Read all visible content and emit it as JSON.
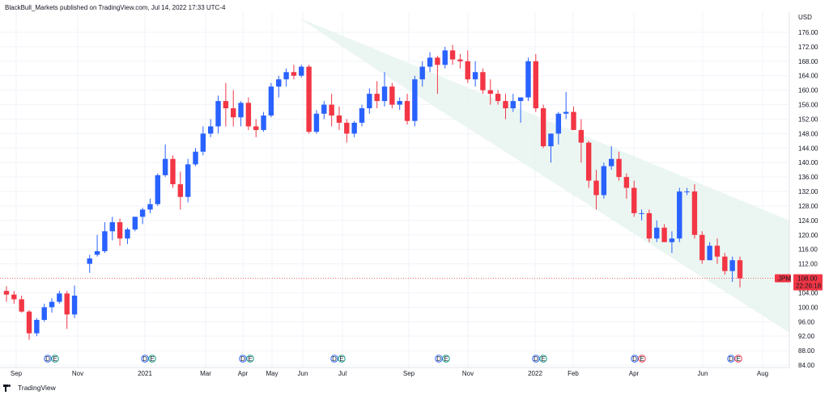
{
  "header": {
    "text": "BlackBull_Markets published on TradingView.com, Jul 14, 2022 17:33 UTC-4"
  },
  "footer": {
    "brand": "TradingView",
    "logo_icon": "tradingview-logo-icon"
  },
  "price_axis": {
    "currency": "USD",
    "ticks": [
      "176.00",
      "172.00",
      "168.00",
      "164.00",
      "160.00",
      "156.00",
      "152.00",
      "148.00",
      "144.00",
      "140.00",
      "136.00",
      "132.00",
      "128.00",
      "124.00",
      "120.00",
      "116.00",
      "112.00",
      "104.00",
      "100.00",
      "96.00",
      "92.00",
      "88.00",
      "84.00"
    ]
  },
  "last_price": {
    "symbol": "JPM",
    "price": "108.00",
    "countdown": "22:26:18",
    "color": "#f23645"
  },
  "colors": {
    "up": "#2962ff",
    "down": "#f23645",
    "channel": "#e6f4ef",
    "grid": "#f0f3fa",
    "earnings": "#089981",
    "dividend": "#2962ff"
  },
  "chart_data": {
    "type": "candlestick",
    "interval": "weekly",
    "ylim": [
      84,
      178
    ],
    "x_ticks": [
      "Sep",
      "Nov",
      "2021",
      "Mar",
      "Apr",
      "May",
      "Jun",
      "Jul",
      "Sep",
      "Nov",
      "2022",
      "Feb",
      "Apr",
      "Jun",
      "Aug"
    ],
    "candles": [
      [
        104.5,
        105.8,
        101.5,
        103.5
      ],
      [
        103.5,
        104.5,
        101.0,
        102.2
      ],
      [
        102.2,
        103.2,
        98.5,
        98.8
      ],
      [
        98.8,
        99.2,
        91.0,
        92.8
      ],
      [
        92.8,
        97.0,
        92.0,
        96.5
      ],
      [
        96.5,
        101.0,
        96.0,
        100.0
      ],
      [
        100.0,
        102.5,
        98.5,
        101.5
      ],
      [
        101.5,
        104.5,
        101.0,
        103.8
      ],
      [
        103.8,
        104.5,
        94.0,
        98.0
      ],
      [
        98.0,
        106.0,
        97.0,
        103.2
      ],
      [
        112.0,
        114.5,
        109.5,
        113.5
      ],
      [
        114.5,
        120.0,
        114.0,
        115.5
      ],
      [
        115.5,
        123.5,
        115.0,
        121.0
      ],
      [
        121.0,
        125.0,
        118.5,
        123.5
      ],
      [
        123.5,
        124.5,
        117.0,
        119.0
      ],
      [
        119.0,
        122.0,
        117.5,
        121.5
      ],
      [
        121.5,
        125.0,
        121.0,
        125.0
      ],
      [
        125.0,
        127.5,
        123.0,
        127.0
      ],
      [
        127.0,
        130.0,
        126.0,
        128.5
      ],
      [
        128.5,
        137.0,
        128.0,
        136.5
      ],
      [
        136.5,
        145.0,
        136.0,
        141.0
      ],
      [
        141.0,
        142.0,
        133.0,
        134.0
      ],
      [
        134.0,
        137.5,
        127.0,
        130.5
      ],
      [
        130.5,
        141.0,
        129.0,
        139.5
      ],
      [
        139.5,
        144.0,
        139.0,
        143.0
      ],
      [
        143.0,
        150.0,
        142.0,
        148.0
      ],
      [
        148.0,
        152.0,
        147.0,
        150.0
      ],
      [
        150.0,
        158.5,
        148.0,
        157.0
      ],
      [
        157.0,
        162.0,
        150.0,
        155.0
      ],
      [
        155.0,
        160.0,
        150.0,
        152.5
      ],
      [
        152.5,
        157.0,
        150.0,
        156.5
      ],
      [
        156.5,
        158.0,
        149.0,
        150.0
      ],
      [
        150.0,
        152.0,
        147.0,
        149.0
      ],
      [
        149.0,
        154.0,
        148.5,
        153.0
      ],
      [
        153.0,
        162.0,
        152.5,
        161.0
      ],
      [
        161.0,
        164.0,
        158.0,
        163.0
      ],
      [
        163.0,
        166.0,
        161.0,
        165.0
      ],
      [
        165.0,
        167.0,
        163.0,
        164.0
      ],
      [
        164.0,
        167.0,
        163.5,
        166.5
      ],
      [
        166.5,
        167.0,
        148.0,
        148.5
      ],
      [
        148.5,
        154.5,
        148.0,
        153.5
      ],
      [
        153.5,
        157.0,
        152.0,
        156.0
      ],
      [
        156.0,
        159.0,
        150.0,
        153.0
      ],
      [
        153.0,
        155.5,
        149.0,
        151.0
      ],
      [
        151.0,
        152.0,
        145.5,
        148.0
      ],
      [
        148.0,
        151.5,
        147.0,
        151.0
      ],
      [
        151.0,
        156.0,
        150.0,
        155.0
      ],
      [
        155.0,
        160.5,
        153.5,
        159.0
      ],
      [
        159.0,
        162.5,
        155.0,
        157.0
      ],
      [
        157.0,
        165.0,
        155.5,
        161.0
      ],
      [
        161.0,
        162.0,
        155.0,
        156.0
      ],
      [
        156.0,
        158.0,
        154.5,
        157.0
      ],
      [
        157.0,
        159.0,
        150.5,
        151.5
      ],
      [
        151.5,
        164.0,
        150.0,
        163.0
      ],
      [
        163.0,
        168.0,
        161.0,
        166.5
      ],
      [
        166.5,
        170.5,
        165.0,
        169.0
      ],
      [
        169.0,
        169.5,
        159.0,
        167.0
      ],
      [
        167.0,
        172.0,
        166.0,
        171.0
      ],
      [
        171.0,
        172.5,
        167.0,
        168.5
      ],
      [
        168.5,
        170.0,
        166.0,
        168.0
      ],
      [
        168.0,
        171.0,
        162.0,
        163.0
      ],
      [
        163.0,
        168.0,
        161.0,
        165.0
      ],
      [
        165.0,
        166.0,
        159.0,
        160.0
      ],
      [
        160.0,
        163.0,
        156.0,
        159.0
      ],
      [
        159.0,
        160.0,
        156.0,
        157.0
      ],
      [
        157.0,
        159.0,
        152.0,
        155.0
      ],
      [
        155.0,
        159.0,
        154.0,
        157.0
      ],
      [
        157.0,
        158.0,
        151.0,
        158.0
      ],
      [
        158.0,
        169.0,
        157.0,
        168.0
      ],
      [
        168.0,
        170.0,
        154.0,
        155.0
      ],
      [
        155.0,
        156.0,
        144.0,
        144.5
      ],
      [
        144.5,
        148.0,
        140.0,
        148.0
      ],
      [
        148.0,
        154.0,
        145.0,
        153.5
      ],
      [
        153.5,
        159.5,
        152.0,
        154.0
      ],
      [
        154.0,
        155.5,
        149.0,
        149.0
      ],
      [
        149.0,
        152.0,
        140.0,
        145.5
      ],
      [
        145.5,
        146.0,
        133.0,
        135.0
      ],
      [
        135.0,
        138.0,
        127.0,
        131.0
      ],
      [
        131.0,
        140.0,
        130.0,
        139.0
      ],
      [
        139.0,
        144.5,
        138.0,
        141.0
      ],
      [
        141.0,
        143.0,
        135.0,
        136.0
      ],
      [
        136.0,
        137.0,
        130.0,
        133.0
      ],
      [
        133.0,
        135.0,
        125.0,
        126.0
      ],
      [
        126.0,
        127.0,
        124.0,
        126.0
      ],
      [
        126.0,
        127.0,
        118.0,
        119.0
      ],
      [
        119.0,
        124.0,
        118.0,
        122.0
      ],
      [
        122.0,
        123.0,
        118.0,
        118.0
      ],
      [
        118.0,
        121.0,
        115.0,
        119.0
      ],
      [
        119.0,
        133.0,
        118.0,
        132.0
      ],
      [
        132.0,
        133.0,
        131.0,
        132.0
      ],
      [
        132.0,
        134.0,
        119.0,
        120.0
      ],
      [
        120.0,
        121.0,
        112.0,
        113.0
      ],
      [
        113.0,
        118.0,
        113.0,
        117.0
      ],
      [
        117.0,
        119.0,
        112.0,
        114.0
      ],
      [
        114.0,
        115.0,
        109.0,
        110.0
      ],
      [
        110.0,
        114.0,
        107.0,
        113.0
      ],
      [
        113.0,
        114.0,
        105.5,
        108.0
      ]
    ],
    "channel": {
      "upper_start": [
        0.375,
        180.0
      ],
      "upper_end": [
        1.0,
        124.0
      ],
      "lower_start": [
        0.5,
        162.0
      ],
      "lower_end": [
        1.0,
        93.0
      ]
    },
    "events": [
      {
        "labels": [
          "D",
          "E"
        ],
        "x": 0.065
      },
      {
        "labels": [
          "D",
          "E"
        ],
        "x": 0.185
      },
      {
        "labels": [
          "D",
          "E"
        ],
        "x": 0.305
      },
      {
        "labels": [
          "D",
          "E"
        ],
        "x": 0.425
      },
      {
        "labels": [
          "D",
          "E"
        ],
        "x": 0.545
      },
      {
        "labels": [
          "D",
          "E"
        ],
        "x": 0.665
      },
      {
        "labels": [
          "D",
          "E"
        ],
        "x": 0.785
      },
      {
        "labels": [
          "D",
          "E"
        ],
        "x": 0.905
      }
    ]
  }
}
